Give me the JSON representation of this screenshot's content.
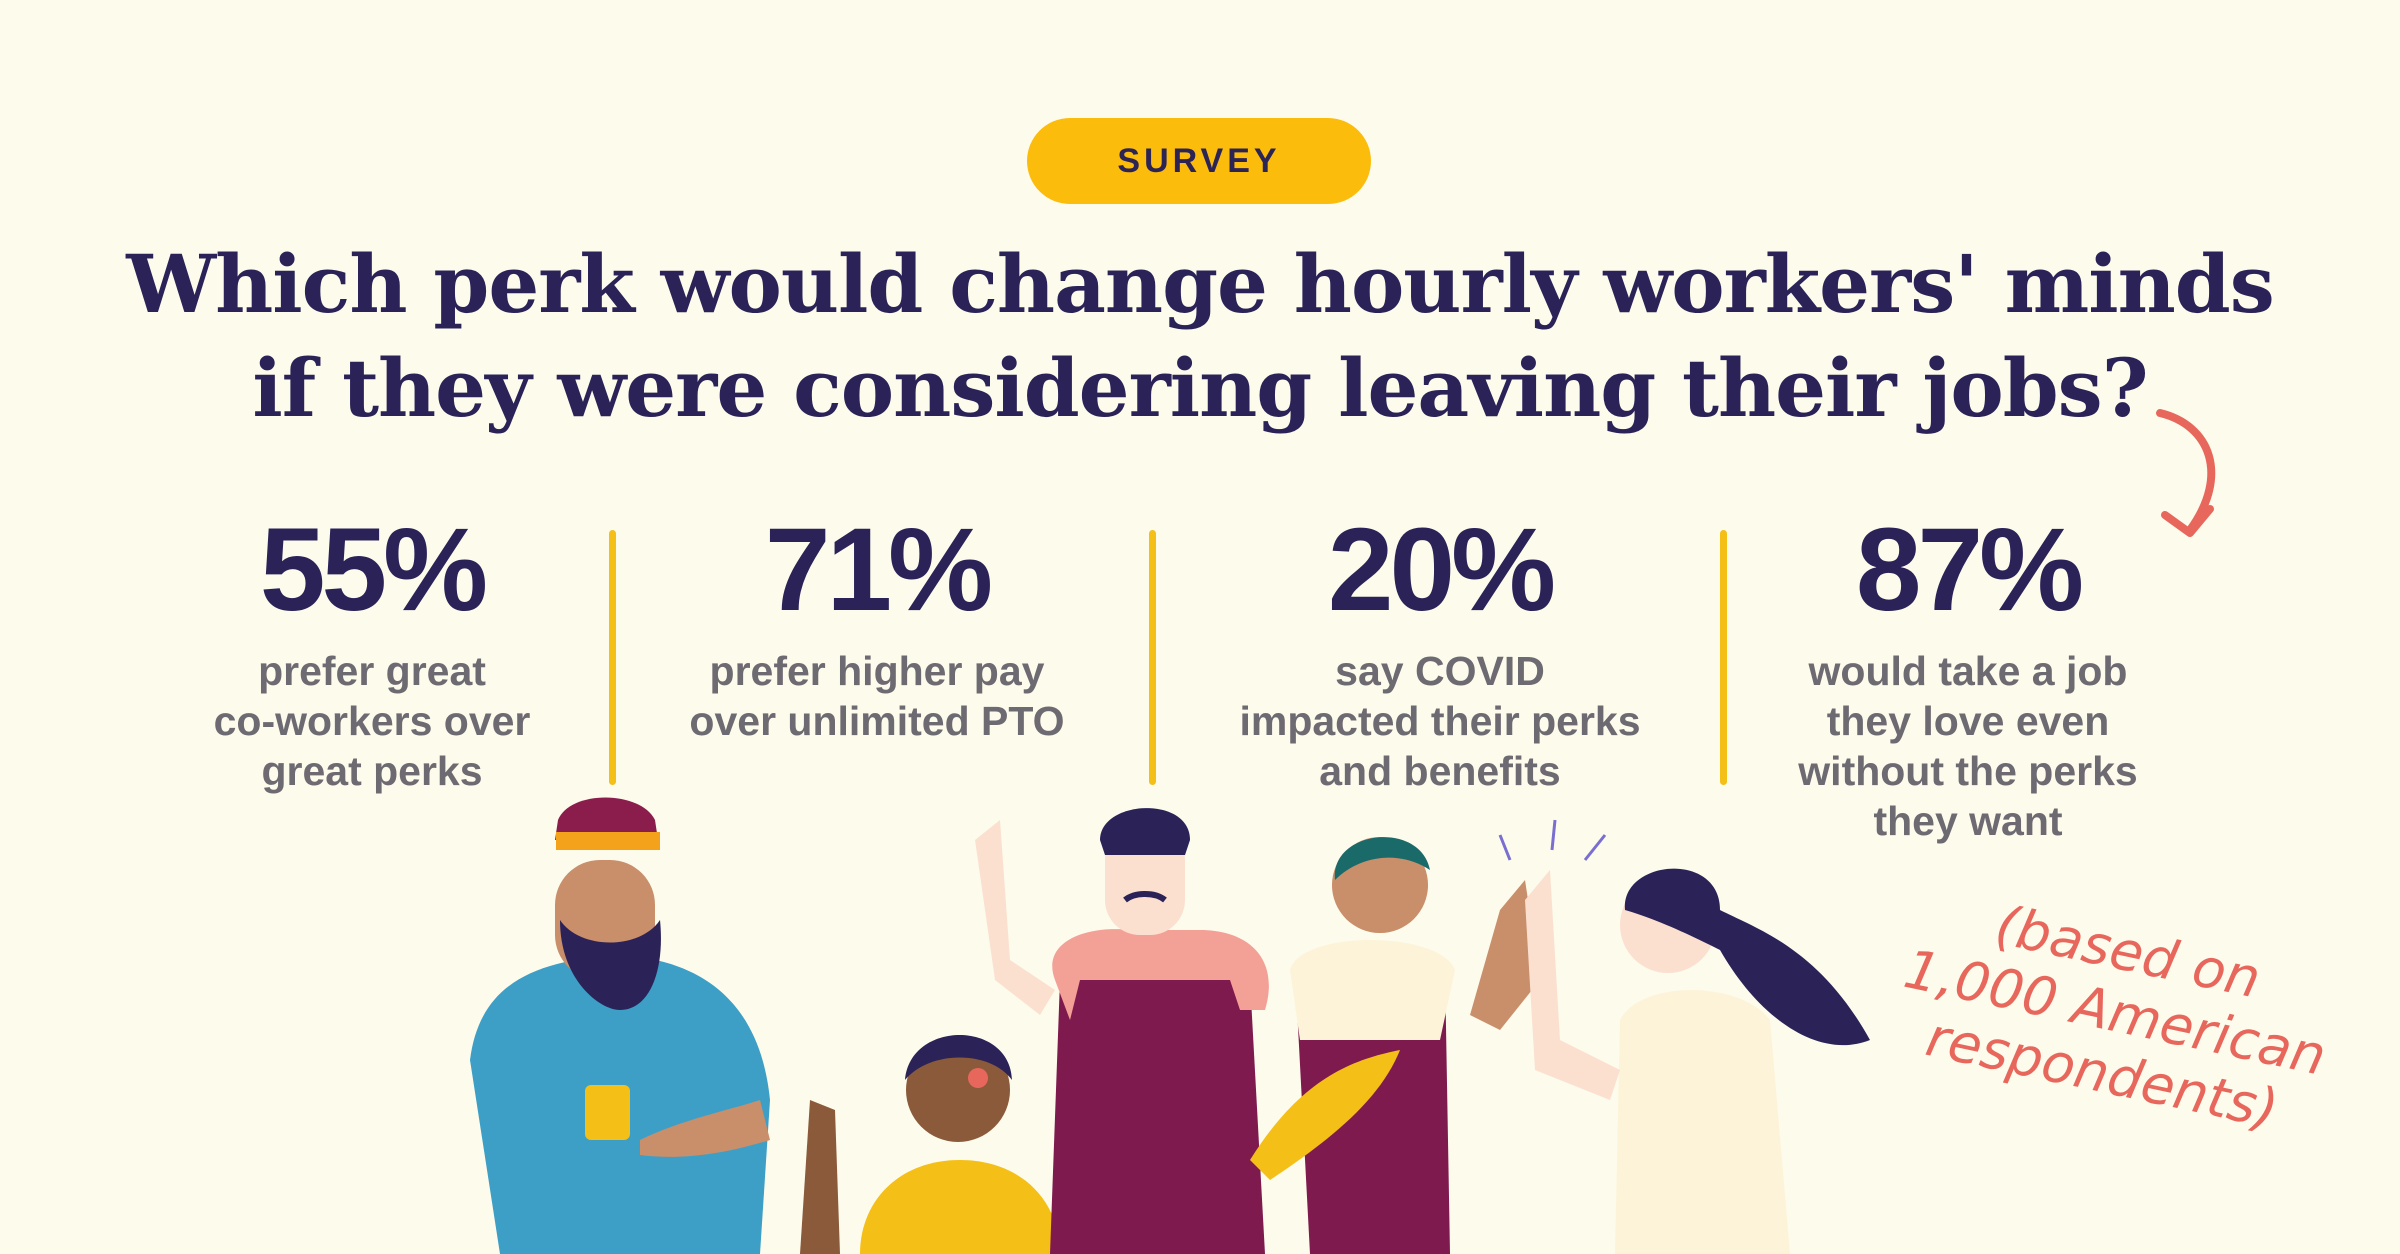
{
  "badge": "SURVEY",
  "headline": {
    "line1": "Which perk would change hourly workers' minds",
    "line2": "if they were considering leaving their jobs?"
  },
  "stats": [
    {
      "value": "55%",
      "desc": [
        "prefer great",
        "co-workers over",
        "great perks"
      ]
    },
    {
      "value": "71%",
      "desc": [
        "prefer higher pay",
        "over unlimited PTO"
      ]
    },
    {
      "value": "20%",
      "desc": [
        "say COVID",
        "impacted their perks",
        "and benefits"
      ]
    },
    {
      "value": "87%",
      "desc": [
        "would take a job",
        "they love even",
        "without the perks",
        "they want"
      ]
    }
  ],
  "note": [
    "(based on",
    "1,000 American",
    "respondents)"
  ],
  "colors": {
    "background": "#fdfbec",
    "badge": "#fbbc0b",
    "heading": "#2b2358",
    "body_text": "#6e6a72",
    "divider": "#f4bf17",
    "accent": "#e8675c"
  },
  "icons": [
    "curved-arrow-icon"
  ]
}
